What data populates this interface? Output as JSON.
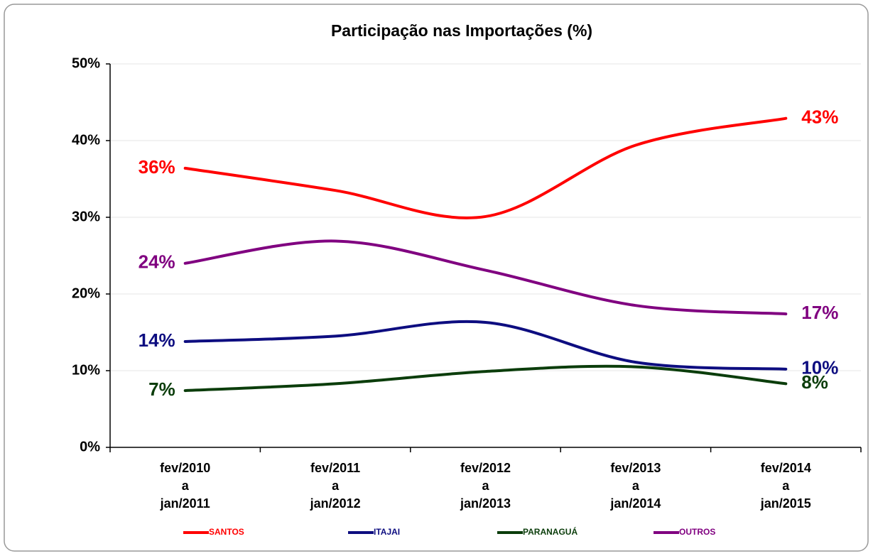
{
  "chart_data": {
    "type": "line",
    "title": "Participação nas Importações (%)",
    "categories": [
      "fev/2010\na\njan/2011",
      "fev/2011\na\njan/2012",
      "fev/2012\na\njan/2013",
      "fev/2013\na\njan/2014",
      "fev/2014\na\njan/2015"
    ],
    "series": [
      {
        "name": "SANTOS",
        "color": "#ff0000",
        "values": [
          36.4,
          33.5,
          30.1,
          39.4,
          42.9
        ],
        "value_labels": [
          "36%",
          null,
          null,
          null,
          "43%"
        ]
      },
      {
        "name": "ITAJAI",
        "color": "#0d0d80",
        "values": [
          13.8,
          14.5,
          16.3,
          11.1,
          10.2
        ],
        "value_labels": [
          "14%",
          null,
          null,
          null,
          "10%"
        ]
      },
      {
        "name": "PARANAGUÁ",
        "color": "#0b3d0b",
        "values": [
          7.4,
          8.3,
          9.9,
          10.5,
          8.3
        ],
        "value_labels": [
          "7%",
          null,
          null,
          null,
          "8%"
        ]
      },
      {
        "name": "OUTROS",
        "color": "#800080",
        "values": [
          24.0,
          26.9,
          23.1,
          18.5,
          17.4
        ],
        "value_labels": [
          "24%",
          null,
          null,
          null,
          "17%"
        ]
      }
    ],
    "ylim": [
      0,
      50
    ],
    "yticks": [
      {
        "value": 0,
        "label": "0%"
      },
      {
        "value": 10,
        "label": "10%"
      },
      {
        "value": 20,
        "label": "20%"
      },
      {
        "value": 30,
        "label": "30%"
      },
      {
        "value": 40,
        "label": "40%"
      },
      {
        "value": 50,
        "label": "50%"
      }
    ],
    "grid": true
  }
}
